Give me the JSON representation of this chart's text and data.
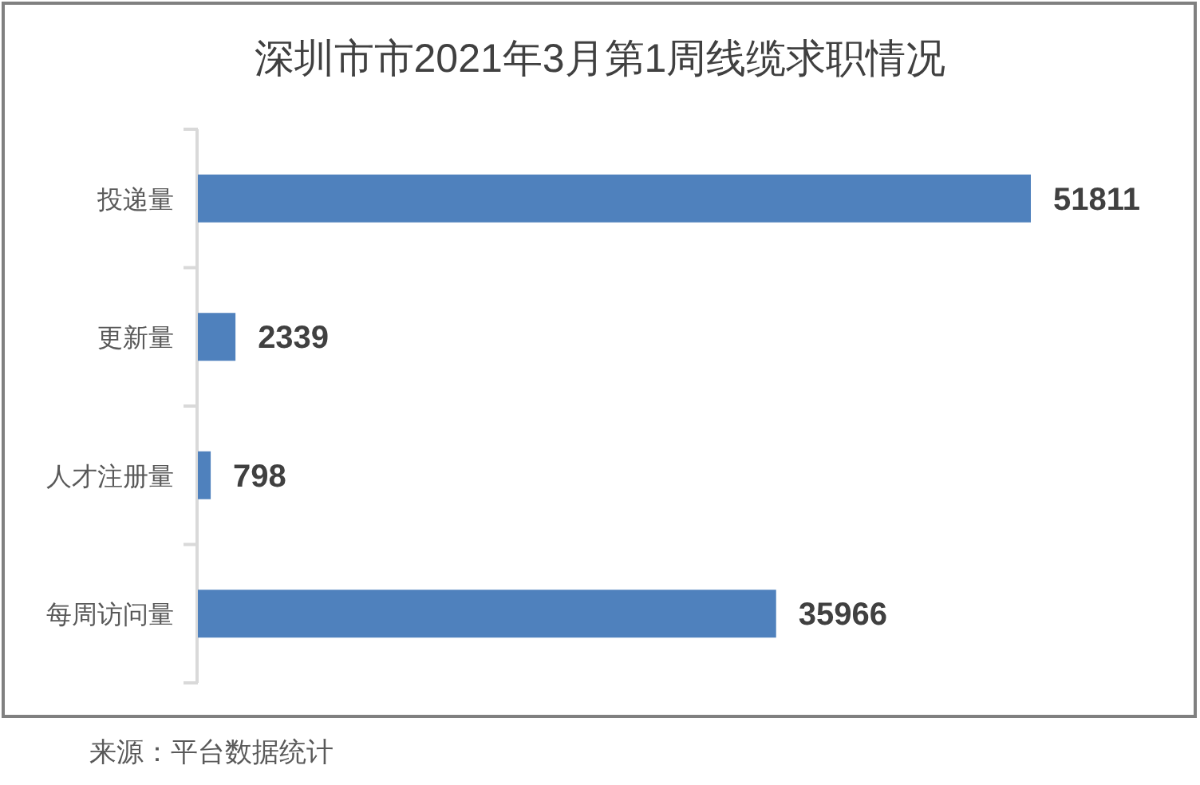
{
  "chart_data": {
    "type": "bar",
    "orientation": "horizontal",
    "title": "深圳市市2021年3月第1周线缆求职情况",
    "categories": [
      "投递量",
      "更新量",
      "人才注册量",
      "每周访问量"
    ],
    "values": [
      51811,
      2339,
      798,
      35966
    ],
    "color": "#4f81bd",
    "data_labels": true,
    "annotations": [
      "来源：平台数据统计"
    ]
  }
}
